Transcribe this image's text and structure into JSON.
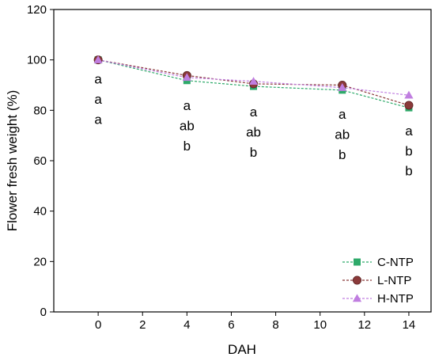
{
  "chart_data": {
    "type": "line",
    "xlabel": "DAH",
    "ylabel": "Flower fresh weight (%)",
    "xlim": [
      -2,
      15
    ],
    "ylim": [
      0,
      120
    ],
    "xticks": [
      0,
      2,
      4,
      6,
      8,
      10,
      12,
      14
    ],
    "yticks": [
      0,
      20,
      40,
      60,
      80,
      100,
      120
    ],
    "x": [
      0,
      4,
      7,
      11,
      14
    ],
    "series": [
      {
        "name": "C-NTP",
        "color": "#2eaa6a",
        "marker": "square",
        "values": [
          100,
          91.8,
          89.5,
          88.0,
          81.0
        ]
      },
      {
        "name": "L-NTP",
        "color": "#8b3a3a",
        "marker": "circle",
        "values": [
          100,
          93.8,
          90.5,
          90.0,
          82.0
        ]
      },
      {
        "name": "H-NTP",
        "color": "#c07ee0",
        "marker": "triangle",
        "values": [
          100,
          93.0,
          91.5,
          89.0,
          86.0
        ]
      }
    ],
    "legend_position": "bottom-right",
    "annotations": [
      {
        "x": 0,
        "letters": [
          "a",
          "a",
          "a"
        ]
      },
      {
        "x": 4,
        "letters": [
          "a",
          "ab",
          "b"
        ]
      },
      {
        "x": 7,
        "letters": [
          "a",
          "ab",
          "b"
        ]
      },
      {
        "x": 11,
        "letters": [
          "a",
          "ab",
          "b"
        ]
      },
      {
        "x": 14,
        "letters": [
          "a",
          "b",
          "b"
        ]
      }
    ]
  }
}
